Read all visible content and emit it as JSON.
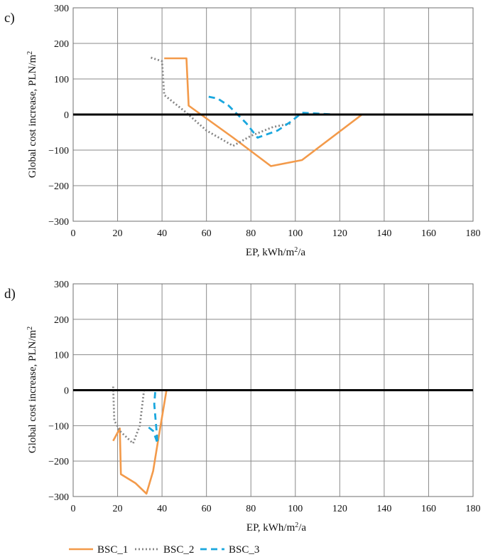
{
  "colors": {
    "BSC_1": "#f39a4a",
    "BSC_2": "#858585",
    "BSC_3": "#1aa7de"
  },
  "legend": [
    {
      "name": "BSC_1",
      "style": "solid"
    },
    {
      "name": "BSC_2",
      "style": "dotted"
    },
    {
      "name": "BSC_3",
      "style": "dashed"
    }
  ],
  "chart_data": [
    {
      "panel_label": "c)",
      "type": "line",
      "xlabel": "EP, kWh/m²/a",
      "ylabel": "Global cost increase, PLN/m²",
      "xlim": [
        0,
        180
      ],
      "ylim": [
        -300,
        300
      ],
      "xticks": [
        0,
        20,
        40,
        60,
        80,
        100,
        120,
        140,
        160,
        180
      ],
      "yticks": [
        -300,
        -200,
        -100,
        0,
        100,
        200,
        300
      ],
      "ytick_labels": [
        "−300",
        "−200",
        "−100",
        "0",
        "100",
        "200",
        "300"
      ],
      "grid": true,
      "series": [
        {
          "name": "BSC_1",
          "x": [
            41,
            51,
            52,
            72,
            89,
            103,
            130
          ],
          "y": [
            158,
            158,
            25,
            -65,
            -145,
            -128,
            0
          ]
        },
        {
          "name": "BSC_2",
          "x": [
            35,
            40,
            41,
            50,
            60,
            72,
            80,
            90,
            98
          ],
          "y": [
            160,
            150,
            55,
            10,
            -45,
            -88,
            -60,
            -35,
            -25
          ]
        },
        {
          "name": "BSC_3",
          "x": [
            61,
            65,
            70,
            78,
            83,
            92,
            98,
            103,
            112,
            118
          ],
          "y": [
            50,
            45,
            25,
            -25,
            -65,
            -45,
            -20,
            5,
            2,
            0
          ]
        }
      ]
    },
    {
      "panel_label": "d)",
      "type": "line",
      "xlabel": "EP, kWh/m²/a",
      "ylabel": "Global cost increase, PLN/m²",
      "xlim": [
        0,
        180
      ],
      "ylim": [
        -300,
        300
      ],
      "xticks": [
        0,
        20,
        40,
        60,
        80,
        100,
        120,
        140,
        160,
        180
      ],
      "yticks": [
        -300,
        -200,
        -100,
        0,
        100,
        200,
        300
      ],
      "ytick_labels": [
        "−300",
        "−200",
        "−100",
        "0",
        "100",
        "200",
        "300"
      ],
      "grid": true,
      "series": [
        {
          "name": "BSC_1",
          "x": [
            18,
            21,
            21.5,
            28,
            33,
            36,
            38,
            42
          ],
          "y": [
            -143,
            -108,
            -237,
            -262,
            -292,
            -228,
            -150,
            0
          ]
        },
        {
          "name": "BSC_2",
          "x": [
            18,
            18.5,
            21,
            27,
            30,
            32
          ],
          "y": [
            10,
            -85,
            -115,
            -150,
            -100,
            5
          ]
        },
        {
          "name": "BSC_3",
          "x": [
            34,
            36,
            38,
            36.5,
            37
          ],
          "y": [
            -105,
            -115,
            -150,
            -40,
            0
          ]
        }
      ]
    }
  ]
}
